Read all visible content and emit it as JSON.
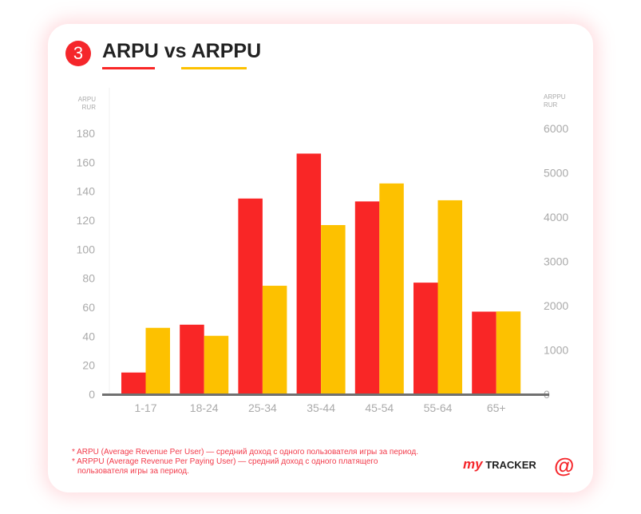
{
  "badge": "3",
  "title": "ARPU vs ARPPU",
  "colors": {
    "arpu": "#f92626",
    "arppu": "#fdc100"
  },
  "chart_data": {
    "type": "bar",
    "title": "ARPU vs ARPPU",
    "categories": [
      "1-17",
      "18-24",
      "25-34",
      "35-44",
      "45-54",
      "55-64",
      "65+"
    ],
    "series": [
      {
        "name": "ARPU",
        "axis": "left",
        "values": [
          15,
          48,
          135,
          166,
          133,
          77,
          57
        ]
      },
      {
        "name": "ARPPU",
        "axis": "right",
        "values": [
          1500,
          1320,
          2450,
          3820,
          4760,
          4380,
          1870
        ]
      }
    ],
    "ylabel_left": [
      "ARPU",
      "RUR"
    ],
    "ylabel_right": [
      "ARPPU",
      "RUR"
    ],
    "ylim_left": [
      0,
      180
    ],
    "ylim_right": [
      0,
      6000
    ],
    "yticks_left": [
      "0",
      "20",
      "40",
      "60",
      "80",
      "100",
      "120",
      "140",
      "160",
      "180"
    ],
    "yticks_right": [
      "0",
      "1000",
      "2000",
      "3000",
      "4000",
      "5000",
      "6000"
    ]
  },
  "notes": [
    "* ARPU (Average Revenue Per User) — средний доход с одного пользователя игры за период.",
    "* ARPPU (Average Revenue Per Paying User) — средний доход с одного платящего пользователя игры за период."
  ],
  "logo": {
    "my": "my",
    "tracker": "TRACKER",
    "at": "@"
  }
}
